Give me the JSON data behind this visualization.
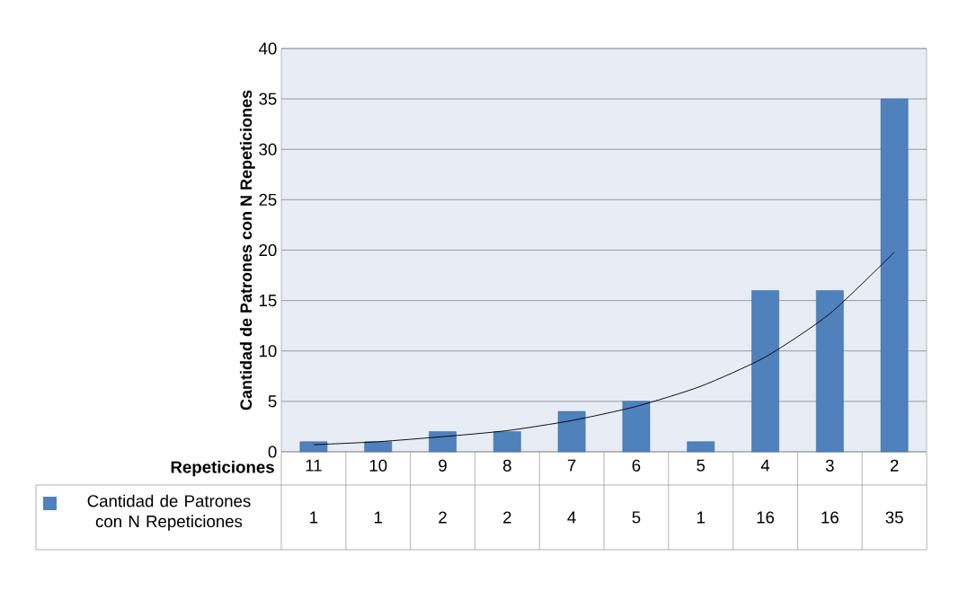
{
  "chart_data": {
    "type": "bar",
    "xlabel": "Repeticiones",
    "ylabel": "Cantidad de Patrones con N Repeticiones",
    "categories": [
      "11",
      "10",
      "9",
      "8",
      "7",
      "6",
      "5",
      "4",
      "3",
      "2"
    ],
    "series": [
      {
        "name": "Cantidad de Patrones con N Repeticiones",
        "color": "#4f81bd",
        "values": [
          1,
          1,
          2,
          2,
          4,
          5,
          1,
          16,
          16,
          35
        ],
        "value_labels": [
          "1",
          "1",
          "2",
          "2",
          "4",
          "5",
          "1",
          "16",
          "16",
          "35"
        ]
      },
      {
        "type": "line",
        "color": "#000000",
        "values": [
          0.7,
          1.0,
          1.5,
          2.1,
          3.1,
          4.5,
          6.5,
          9.4,
          13.7,
          19.8
        ]
      }
    ],
    "ylim": [
      0,
      40
    ],
    "yticks": [
      0,
      5,
      10,
      15,
      20,
      25,
      30,
      35,
      40
    ],
    "grid": "y",
    "legend": "bottom left"
  }
}
